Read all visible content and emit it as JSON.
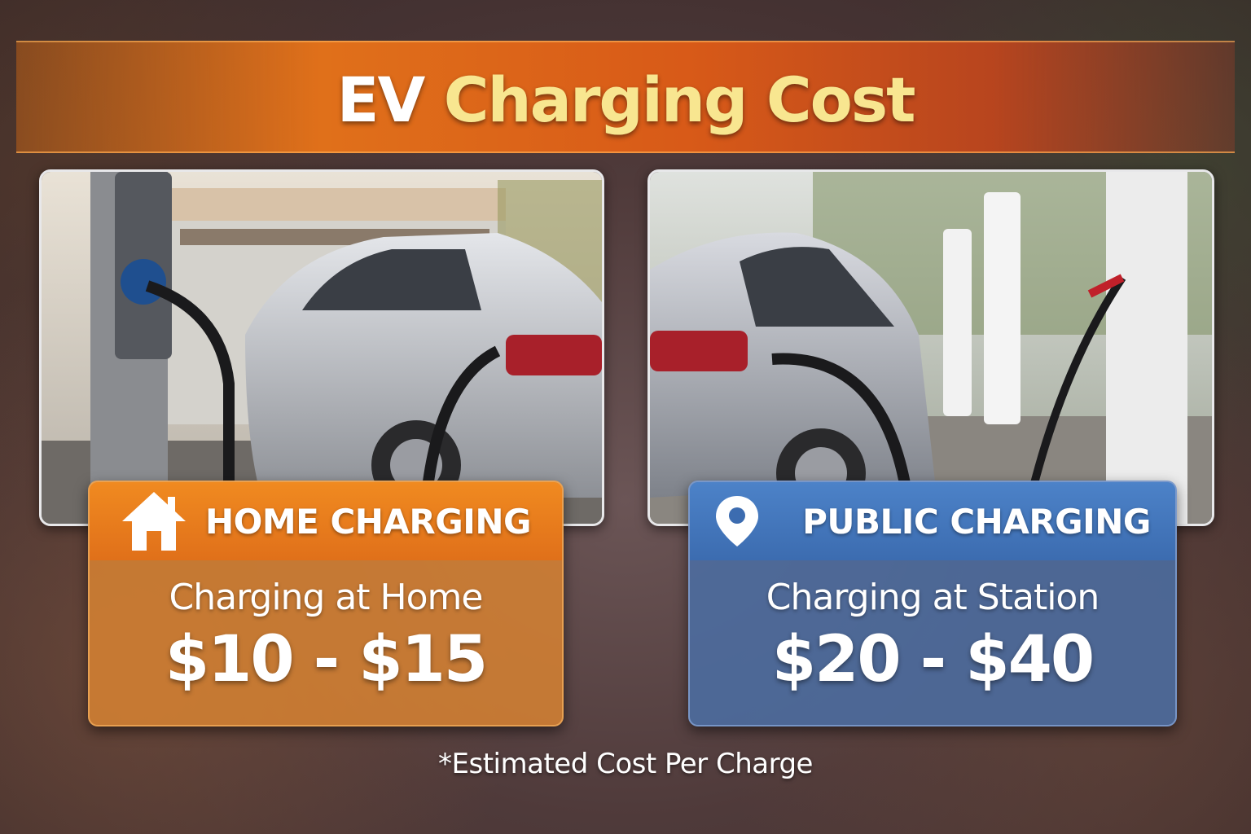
{
  "title": {
    "part1": "EV",
    "part2": "Charging Cost"
  },
  "cards": [
    {
      "icon": "home-icon",
      "heading": "HOME CHARGING",
      "subtitle": "Charging at Home",
      "price": "$10 - $15",
      "color": "#e0701a"
    },
    {
      "icon": "map-pin-icon",
      "heading": "PUBLIC CHARGING",
      "subtitle": "Charging at Station",
      "price": "$20 - $40",
      "color": "#3c6cb0"
    }
  ],
  "footnote": "*Estimated Cost Per Charge",
  "colors": {
    "title_accent": "#f8e690",
    "banner": "#d85a18"
  }
}
